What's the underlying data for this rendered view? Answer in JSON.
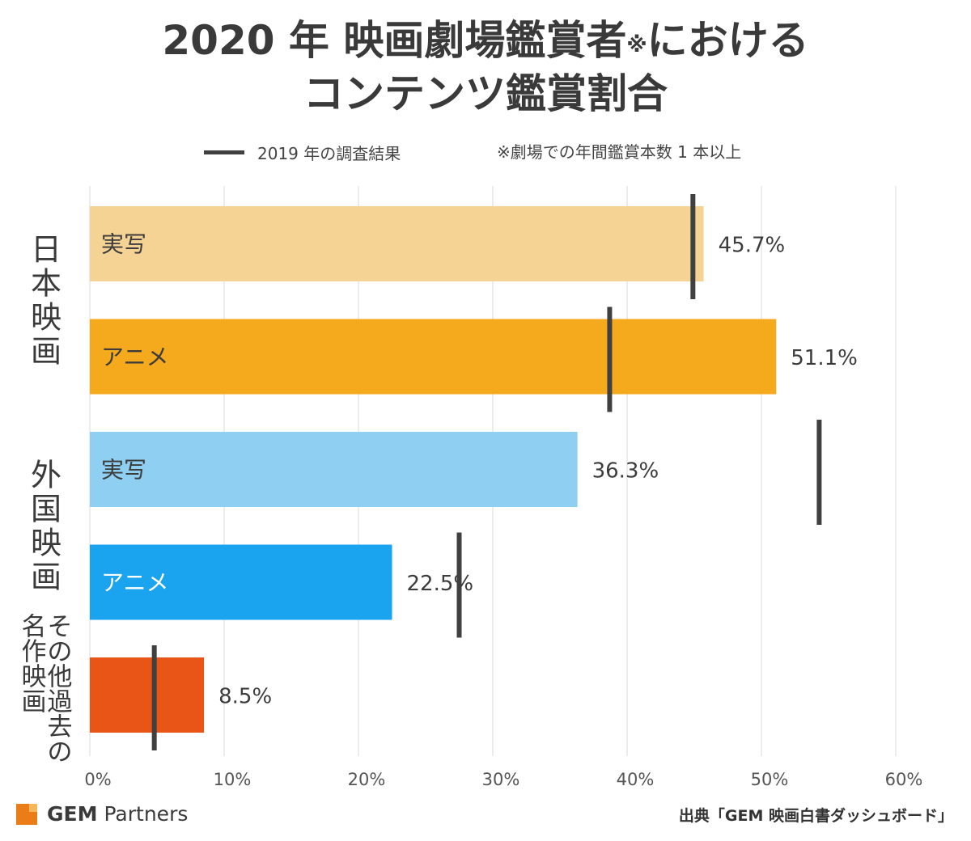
{
  "title_line1": "2020 年 映画劇場鑑賞者",
  "title_mark": "※",
  "title_line1_tail": "における",
  "title_line2": "コンテンツ鑑賞割合",
  "legend_label": "2019 年の調査結果",
  "note": "※劇場での年間鑑賞本数 1 本以上",
  "footer": {
    "brand_bold": "GEM",
    "brand_rest": "Partners",
    "source": "出典「GEM 映画白書ダッシュボード」"
  },
  "chart_data": {
    "type": "bar",
    "orientation": "horizontal",
    "xlim": [
      0,
      60
    ],
    "xticks": [
      "0%",
      "10%",
      "20%",
      "30%",
      "40%",
      "50%",
      "60%"
    ],
    "groups": [
      {
        "label": "日本映画",
        "rows": [
          0,
          1
        ]
      },
      {
        "label": "外国映画",
        "rows": [
          2,
          3
        ]
      },
      {
        "label": "その他過去の名作映画",
        "label_columns": [
          "その他過去の",
          "名作映画"
        ],
        "rows": [
          4
        ]
      }
    ],
    "bars": [
      {
        "category": "実写",
        "value": 45.7,
        "value_label": "45.7%",
        "prev_2019": 44.9,
        "color": "#f5d395",
        "text_color": "#3c3c3c"
      },
      {
        "category": "アニメ",
        "value": 51.1,
        "value_label": "51.1%",
        "prev_2019": 38.7,
        "color": "#f5a91d",
        "text_color": "#3c3c3c"
      },
      {
        "category": "実写",
        "value": 36.3,
        "value_label": "36.3%",
        "prev_2019": 54.3,
        "color": "#8ecff2",
        "text_color": "#3c3c3c"
      },
      {
        "category": "アニメ",
        "value": 22.5,
        "value_label": "22.5%",
        "prev_2019": 27.5,
        "color": "#1aa3ef",
        "text_color": "#ffffff"
      },
      {
        "category": "",
        "value": 8.5,
        "value_label": "8.5%",
        "prev_2019": 4.8,
        "color": "#e95517",
        "text_color": "#ffffff"
      }
    ],
    "grid": true,
    "legend": "top"
  }
}
